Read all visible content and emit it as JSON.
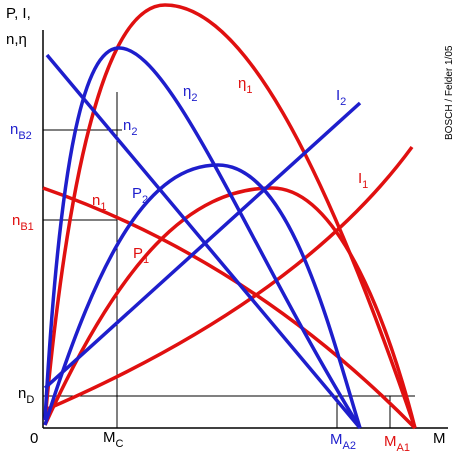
{
  "y_axis_label": {
    "line1": "P, I,",
    "line2": "n,η"
  },
  "x_axis_label": "M",
  "origin_label": "0",
  "x_markers": [
    {
      "text": "M",
      "sub": "C"
    },
    {
      "text": "M",
      "sub": "A2"
    },
    {
      "text": "M",
      "sub": "A1"
    }
  ],
  "y_markers": [
    {
      "text": "n",
      "sub": "B2"
    },
    {
      "text": "n",
      "sub": "B1"
    },
    {
      "text": "n",
      "sub": "D"
    }
  ],
  "curve_labels": [
    {
      "text": "η",
      "sub": "2"
    },
    {
      "text": "η",
      "sub": "1"
    },
    {
      "text": "I",
      "sub": "2"
    },
    {
      "text": "I",
      "sub": "1"
    },
    {
      "text": "n",
      "sub": "2"
    },
    {
      "text": "n",
      "sub": "1"
    },
    {
      "text": "P",
      "sub": "2"
    },
    {
      "text": "P",
      "sub": "1"
    }
  ],
  "credit": "BOSCH / Felder 1/05"
}
